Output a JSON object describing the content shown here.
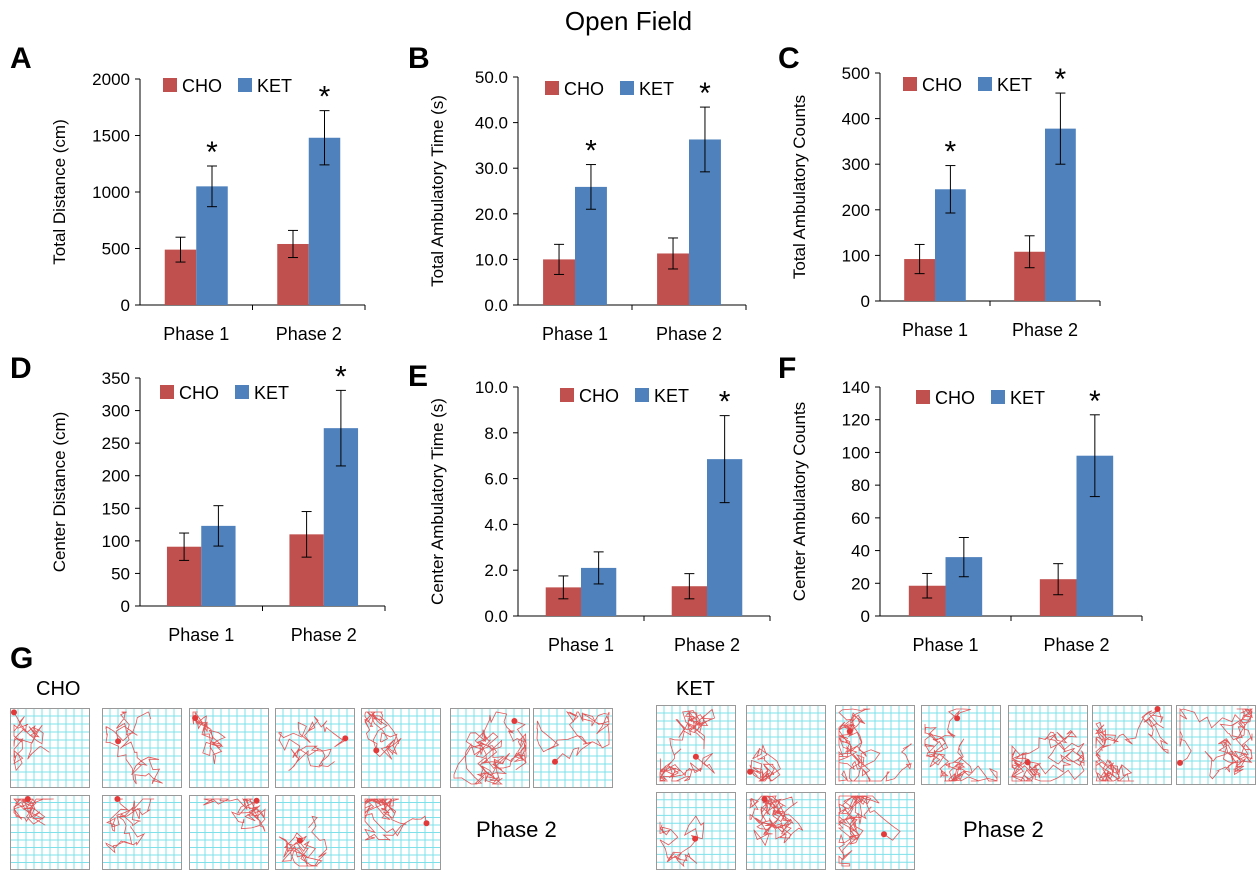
{
  "figure": {
    "title": "Open Field",
    "panel_letters": [
      "A",
      "B",
      "C",
      "D",
      "E",
      "F",
      "G"
    ]
  },
  "colors": {
    "CHO": "#c0504d",
    "KET": "#4f81bd",
    "track_grid": "#7fe0ea",
    "track_path": "#e23a3a"
  },
  "chart_data": [
    {
      "type": "bar",
      "panel": "A",
      "ylabel": "Total Distance (cm)",
      "categories": [
        "Phase 1",
        "Phase 2"
      ],
      "ylim": [
        0,
        2000
      ],
      "yticks": [
        "0",
        "500",
        "1000",
        "1500",
        "2000"
      ],
      "series": [
        {
          "name": "CHO",
          "values": [
            490,
            540
          ],
          "errors": [
            110,
            120
          ]
        },
        {
          "name": "KET",
          "values": [
            1050,
            1480
          ],
          "errors": [
            180,
            240
          ]
        }
      ],
      "significance": [
        "*",
        "*"
      ],
      "grid": false,
      "legend": "top"
    },
    {
      "type": "bar",
      "panel": "B",
      "ylabel": "Total Ambulatory Time (s)",
      "categories": [
        "Phase 1",
        "Phase 2"
      ],
      "ylim": [
        0,
        50
      ],
      "yticks": [
        "0.0",
        "10.0",
        "20.0",
        "30.0",
        "40.0",
        "50.0"
      ],
      "series": [
        {
          "name": "CHO",
          "values": [
            10.0,
            11.3
          ],
          "errors": [
            3.3,
            3.4
          ]
        },
        {
          "name": "KET",
          "values": [
            25.9,
            36.3
          ],
          "errors": [
            4.9,
            7.1
          ]
        }
      ],
      "significance": [
        "*",
        "*"
      ],
      "grid": false,
      "legend": "top"
    },
    {
      "type": "bar",
      "panel": "C",
      "ylabel": "Total Ambulatory Counts",
      "categories": [
        "Phase 1",
        "Phase 2"
      ],
      "ylim": [
        0,
        500
      ],
      "yticks": [
        "0",
        "100",
        "200",
        "300",
        "400",
        "500"
      ],
      "series": [
        {
          "name": "CHO",
          "values": [
            92,
            108
          ],
          "errors": [
            32,
            35
          ]
        },
        {
          "name": "KET",
          "values": [
            245,
            378
          ],
          "errors": [
            52,
            78
          ]
        }
      ],
      "significance": [
        "*",
        "*"
      ],
      "grid": false,
      "legend": "top"
    },
    {
      "type": "bar",
      "panel": "D",
      "ylabel": "Center Distance (cm)",
      "categories": [
        "Phase 1",
        "Phase 2"
      ],
      "ylim": [
        0,
        350
      ],
      "yticks": [
        "0",
        "50",
        "100",
        "150",
        "200",
        "250",
        "300",
        "350"
      ],
      "series": [
        {
          "name": "CHO",
          "values": [
            91,
            110
          ],
          "errors": [
            21,
            35
          ]
        },
        {
          "name": "KET",
          "values": [
            123,
            273
          ],
          "errors": [
            31,
            58
          ]
        }
      ],
      "significance": [
        "",
        "*"
      ],
      "grid": false,
      "legend": "top"
    },
    {
      "type": "bar",
      "panel": "E",
      "ylabel": "Center Ambulatory Time (s)",
      "categories": [
        "Phase 1",
        "Phase 2"
      ],
      "ylim": [
        0,
        10
      ],
      "yticks": [
        "0.0",
        "2.0",
        "4.0",
        "6.0",
        "8.0",
        "10.0"
      ],
      "series": [
        {
          "name": "CHO",
          "values": [
            1.25,
            1.3
          ],
          "errors": [
            0.5,
            0.55
          ]
        },
        {
          "name": "KET",
          "values": [
            2.1,
            6.85
          ],
          "errors": [
            0.7,
            1.9
          ]
        }
      ],
      "significance": [
        "",
        "*"
      ],
      "grid": false,
      "legend": "top"
    },
    {
      "type": "bar",
      "panel": "F",
      "ylabel": "Center Ambulatory Counts",
      "categories": [
        "Phase 1",
        "Phase 2"
      ],
      "ylim": [
        0,
        140
      ],
      "yticks": [
        "0",
        "20",
        "40",
        "60",
        "80",
        "100",
        "120",
        "140"
      ],
      "series": [
        {
          "name": "CHO",
          "values": [
            18.5,
            22.5
          ],
          "errors": [
            7.5,
            9.5
          ]
        },
        {
          "name": "KET",
          "values": [
            36,
            98
          ],
          "errors": [
            12,
            25
          ]
        }
      ],
      "significance": [
        "",
        "*"
      ],
      "grid": false,
      "legend": "top"
    }
  ],
  "tracks": {
    "cho": {
      "label": "CHO",
      "phase_label": "Phase 2",
      "row1_count": 7,
      "row2_count": 5
    },
    "ket": {
      "label": "KET",
      "phase_label": "Phase 2",
      "row1_count": 7,
      "row2_count": 3
    }
  }
}
